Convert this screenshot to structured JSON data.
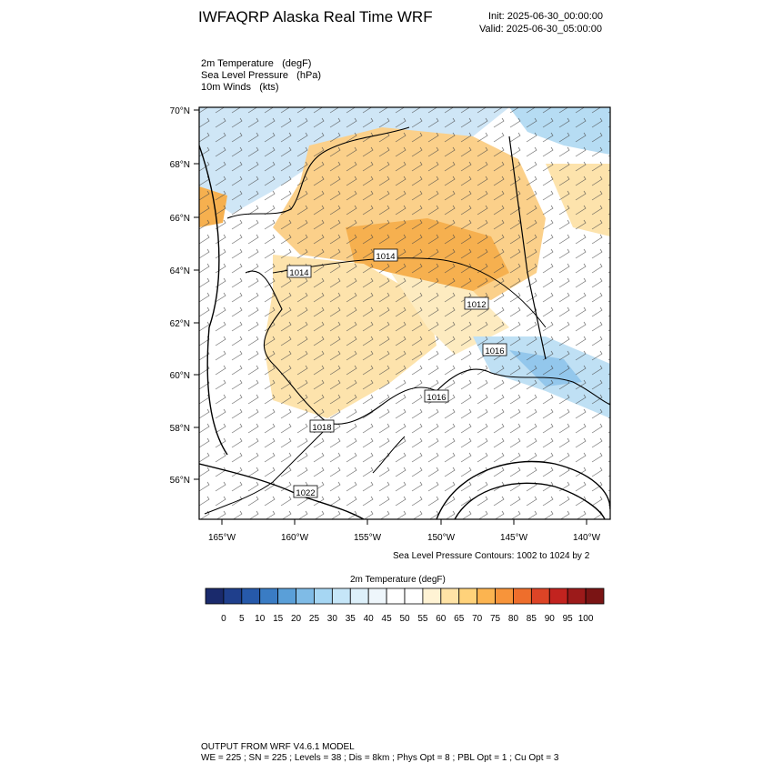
{
  "header": {
    "title": "IWFAQRP Alaska Real Time WRF",
    "init": "Init: 2025-06-30_00:00:00",
    "valid": "Valid: 2025-06-30_05:00:00"
  },
  "fields": [
    {
      "name": "2m Temperature",
      "unit": "(degF)"
    },
    {
      "name": "Sea Level Pressure",
      "unit": "(hPa)"
    },
    {
      "name": "10m Winds",
      "unit": "(kts)"
    }
  ],
  "map": {
    "lat_labels": [
      "70°N",
      "68°N",
      "66°N",
      "64°N",
      "62°N",
      "60°N",
      "58°N",
      "56°N"
    ],
    "lon_labels": [
      "165°W",
      "160°W",
      "155°W",
      "150°W",
      "145°W",
      "140°W"
    ],
    "pressure_labels": [
      "1014",
      "1014",
      "1012",
      "1016",
      "1016",
      "1018",
      "1022"
    ],
    "contour_note": "Sea Level Pressure Contours: 1002 to 1024 by 2"
  },
  "colorbar": {
    "title": "2m Temperature  (degF)",
    "labels": [
      "0",
      "5",
      "10",
      "15",
      "20",
      "25",
      "30",
      "35",
      "40",
      "45",
      "50",
      "55",
      "60",
      "65",
      "70",
      "75",
      "80",
      "85",
      "90",
      "95",
      "100"
    ],
    "colors": [
      "#1a2a6c",
      "#1f3f8c",
      "#2659aa",
      "#3a7cc4",
      "#5a9fd8",
      "#7fbbe6",
      "#a6d6f3",
      "#c6e6f8",
      "#ddf0fa",
      "#eef6fb",
      "#ffffff",
      "#ffffff",
      "#fff3d4",
      "#ffe3a6",
      "#ffd27a",
      "#fcb450",
      "#f7943a",
      "#ee6e2c",
      "#dd4426",
      "#c2231f",
      "#9c1a1a",
      "#7a1414"
    ]
  },
  "footer": {
    "line1": "OUTPUT FROM WRF V4.6.1 MODEL",
    "line2": "WE = 225 ; SN = 225 ; Levels = 38 ; Dis = 8km ; Phys Opt = 8 ; PBL Opt = 1 ; Cu Opt = 3"
  }
}
